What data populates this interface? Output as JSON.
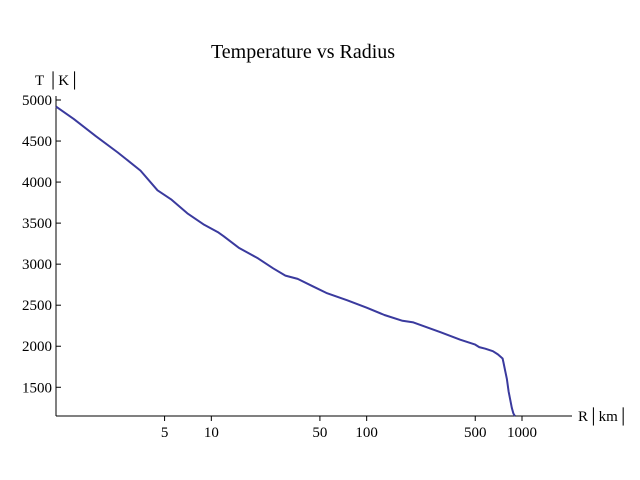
{
  "chart_data": {
    "type": "line",
    "title": "Temperature vs Radius",
    "xlabel": "R│km│",
    "ylabel": "T │K│",
    "xscale": "log",
    "xlim": [
      1,
      1000
    ],
    "ylim": [
      1150,
      5000
    ],
    "grid": false,
    "legend": "none",
    "line_color": "#3a3a9e",
    "x_ticks": [
      {
        "value": 5,
        "label": "5"
      },
      {
        "value": 10,
        "label": "10"
      },
      {
        "value": 50,
        "label": "50"
      },
      {
        "value": 100,
        "label": "100"
      },
      {
        "value": 500,
        "label": "500"
      },
      {
        "value": 1000,
        "label": "1000"
      }
    ],
    "y_ticks": [
      {
        "value": 1500,
        "label": "1500"
      },
      {
        "value": 2000,
        "label": "2000"
      },
      {
        "value": 2500,
        "label": "2500"
      },
      {
        "value": 3000,
        "label": "3000"
      },
      {
        "value": 3500,
        "label": "3500"
      },
      {
        "value": 4000,
        "label": "4000"
      },
      {
        "value": 4500,
        "label": "4500"
      },
      {
        "value": 5000,
        "label": "5000"
      }
    ],
    "series": [
      {
        "x": [
          1,
          1.3,
          1.8,
          2.5,
          3.5,
          4.5,
          5.5,
          7,
          9,
          11,
          12,
          15,
          20,
          25,
          30,
          36,
          45,
          55,
          75,
          100,
          130,
          170,
          200,
          300,
          400,
          500,
          530,
          580,
          650,
          700,
          750,
          760,
          780,
          800,
          820,
          840,
          860,
          880,
          900
        ],
        "y": [
          4920,
          4770,
          4560,
          4360,
          4140,
          3900,
          3790,
          3620,
          3480,
          3390,
          3340,
          3200,
          3070,
          2950,
          2860,
          2820,
          2730,
          2650,
          2560,
          2470,
          2380,
          2310,
          2290,
          2170,
          2080,
          2020,
          1990,
          1970,
          1940,
          1900,
          1850,
          1800,
          1700,
          1600,
          1450,
          1350,
          1250,
          1180,
          1150
        ]
      }
    ]
  }
}
